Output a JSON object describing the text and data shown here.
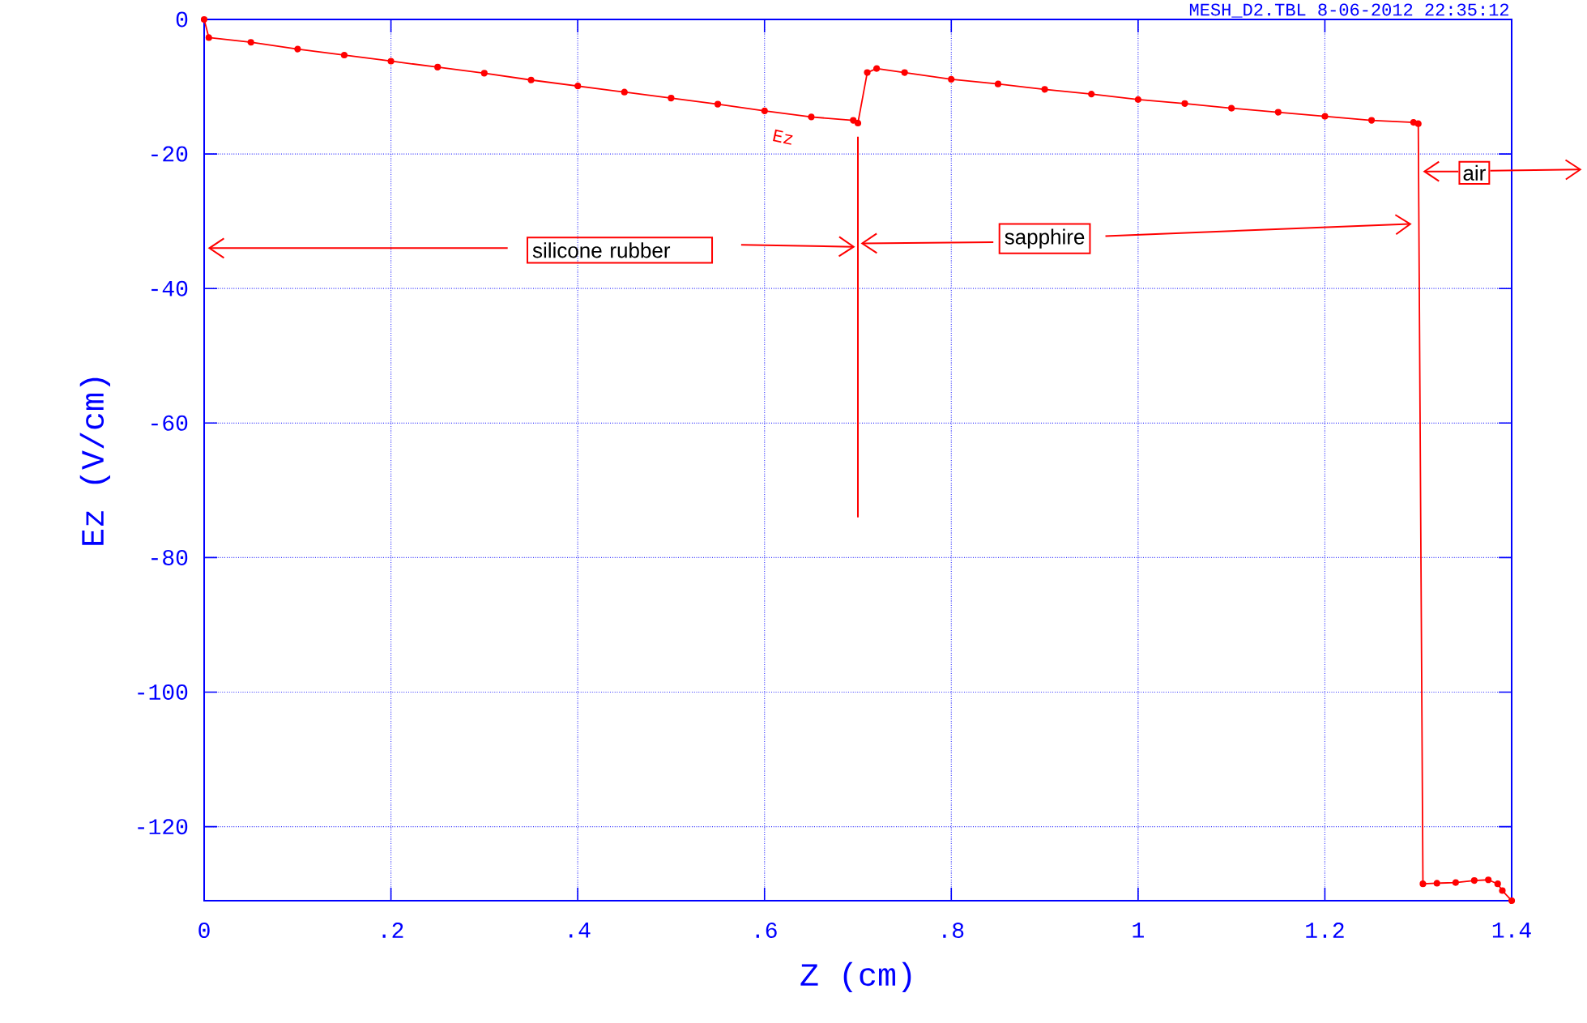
{
  "chart_data": {
    "type": "line",
    "xlabel": "Z (cm)",
    "ylabel": "Ez (V/cm)",
    "x": [
      0,
      0.005,
      0.05,
      0.1,
      0.15,
      0.2,
      0.25,
      0.3,
      0.35,
      0.4,
      0.45,
      0.5,
      0.55,
      0.6,
      0.65,
      0.695,
      0.7,
      0.71,
      0.72,
      0.75,
      0.8,
      0.85,
      0.9,
      0.95,
      1.0,
      1.05,
      1.1,
      1.15,
      1.2,
      1.25,
      1.295,
      1.3,
      1.305,
      1.32,
      1.34,
      1.36,
      1.375,
      1.385,
      1.39,
      1.4
    ],
    "series": [
      {
        "color": "#ff0000",
        "values": [
          0,
          -2.7,
          -3.4,
          -4.4,
          -5.3,
          -6.2,
          -7.1,
          -8.0,
          -9.0,
          -9.9,
          -10.8,
          -11.7,
          -12.6,
          -13.6,
          -14.5,
          -15.0,
          -15.4,
          -7.9,
          -7.3,
          -7.9,
          -8.9,
          -9.6,
          -10.4,
          -11.1,
          -11.9,
          -12.5,
          -13.2,
          -13.8,
          -14.4,
          -15.0,
          -15.3,
          -15.5,
          -128.5,
          -128.4,
          -128.3,
          -128.0,
          -127.9,
          -128.5,
          -129.5,
          -131
        ]
      }
    ],
    "xlim": [
      0,
      1.4
    ],
    "ylim": [
      -131,
      0
    ],
    "xticks": [
      0,
      {
        "value": 0.2,
        "label": ".2"
      },
      {
        "value": 0.4,
        "label": ".4"
      },
      {
        "value": 0.6,
        "label": ".6"
      },
      {
        "value": 0.8,
        "label": ".8"
      },
      1,
      1.2,
      1.4
    ],
    "yticks": [
      0,
      -20,
      -40,
      -60,
      -80,
      -100,
      -120
    ],
    "grid": true,
    "marker": "circle",
    "line_style": "solid",
    "annotations": [
      "MESH_D2.TBL    8-06-2012  22:35:12",
      "Ez",
      "silicone rubber",
      "sapphire",
      "air"
    ],
    "ref_lines": [
      {
        "axis": "x",
        "value": 0.7,
        "color": "#ff0000"
      }
    ]
  }
}
